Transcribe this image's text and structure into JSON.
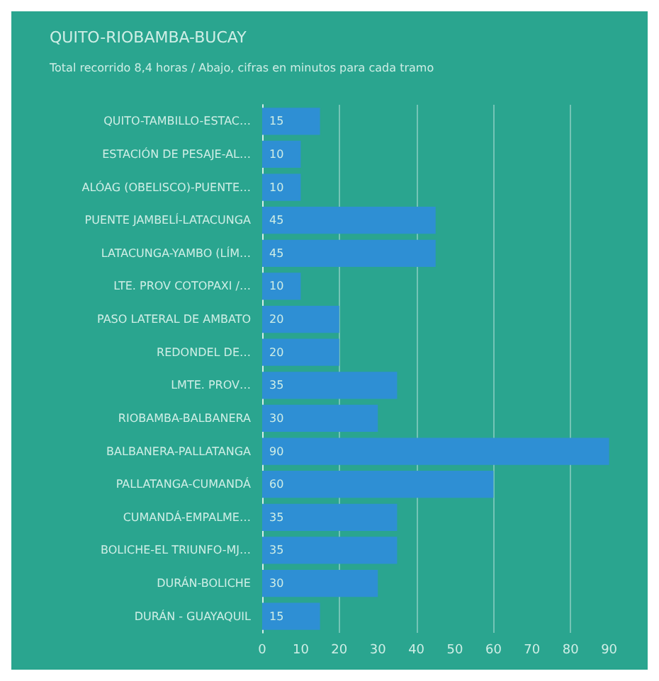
{
  "chart_data": {
    "type": "bar",
    "orientation": "horizontal",
    "title": "QUITO-RIOBAMBA-BUCAY",
    "subtitle": "Total recorrido 8,4 horas / Abajo, cifras en minutos para cada tramo",
    "categories": [
      "QUITO-TAMBILLO-ESTAC…",
      "ESTACIÓN DE PESAJE-AL…",
      "ALÓAG (OBELISCO)-PUENTE…",
      "PUENTE JAMBELÍ-LATACUNGA",
      "LATACUNGA-YAMBO (LÍM…",
      "LTE. PROV COTOPAXI /…",
      "PASO LATERAL DE AMBATO",
      "REDONDEL DE…",
      "LMTE. PROV…",
      "RIOBAMBA-BALBANERA",
      "BALBANERA-PALLATANGA",
      "PALLATANGA-CUMANDÁ",
      "CUMANDÁ-EMPALME…",
      "BOLICHE-EL TRIUNFO-MJ…",
      "DURÁN-BOLICHE",
      "DURÁN - GUAYAQUIL"
    ],
    "values": [
      15,
      10,
      10,
      45,
      45,
      10,
      20,
      20,
      35,
      30,
      90,
      60,
      35,
      35,
      30,
      15
    ],
    "color": "#2e8fd4",
    "xlim": [
      0,
      100
    ],
    "xticks": [
      0,
      10,
      20,
      30,
      40,
      50,
      60,
      70,
      80,
      90
    ],
    "grid": "x",
    "data_labels": true
  }
}
